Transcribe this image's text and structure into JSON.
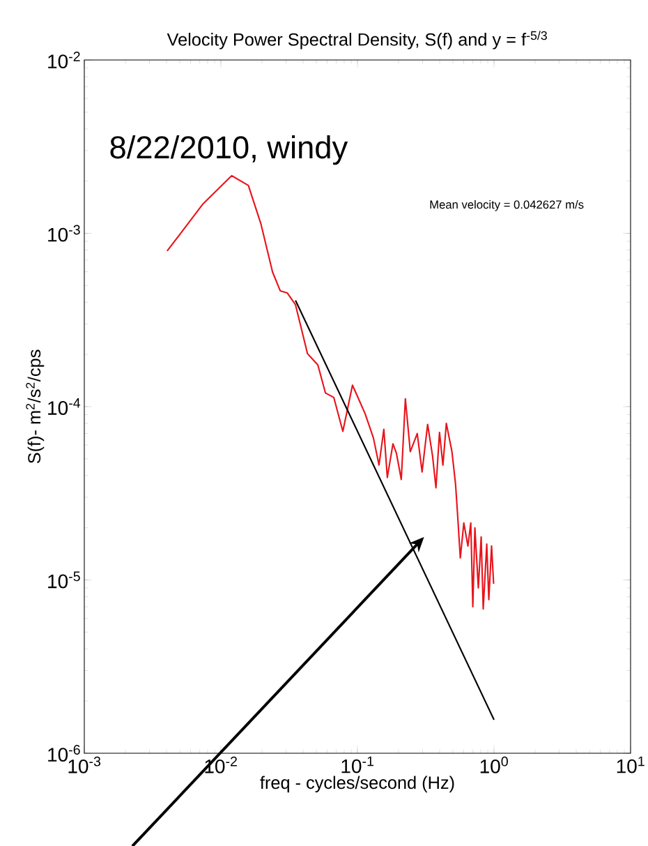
{
  "chart_data": {
    "type": "line",
    "log": "xy",
    "title": "Velocity Power Spectral Density, S(f) and y = f$^{-5/3}$",
    "xlabel": "freq - cycles/second (Hz)",
    "ylabel": "S(f)- m$^{2}$/s$^{2}$/cps",
    "xlim": [
      0.001,
      10
    ],
    "ylim": [
      1e-06,
      0.01
    ],
    "xticks": [
      {
        "value": 0.001,
        "label": "10$^{-3}$"
      },
      {
        "value": 0.01,
        "label": "10$^{-2}$"
      },
      {
        "value": 0.1,
        "label": "10$^{-1}$"
      },
      {
        "value": 1,
        "label": "10$^{0}$"
      },
      {
        "value": 10,
        "label": "10$^{1}$"
      }
    ],
    "yticks": [
      {
        "value": 1e-06,
        "label": "10$^{-6}$"
      },
      {
        "value": 1e-05,
        "label": "10$^{-5}$"
      },
      {
        "value": 0.0001,
        "label": "10$^{-4}$"
      },
      {
        "value": 0.001,
        "label": "10$^{-3}$"
      },
      {
        "value": 0.01,
        "label": "10$^{-2}$"
      }
    ],
    "series": [
      {
        "color": "#e8141b",
        "x": [
          0.00404,
          0.00741,
          0.012,
          0.0159,
          0.0196,
          0.0239,
          0.0272,
          0.0306,
          0.0352,
          0.0431,
          0.0513,
          0.0583,
          0.0671,
          0.0782,
          0.092,
          0.1138,
          0.1309,
          0.1439,
          0.1561,
          0.1655,
          0.182,
          0.1928,
          0.2094,
          0.2244,
          0.2438,
          0.2741,
          0.2974,
          0.3266,
          0.3548,
          0.3758,
          0.399,
          0.4227,
          0.4477,
          0.492,
          0.5224,
          0.5408,
          0.5665,
          0.6012,
          0.6442,
          0.6761,
          0.6998,
          0.7245,
          0.7678,
          0.8054,
          0.8337,
          0.8851,
          0.9162,
          0.9597,
          0.9935
        ],
        "values": [
          0.00079,
          0.00148,
          0.00215,
          0.00189,
          0.00114,
          0.000598,
          0.000466,
          0.000453,
          0.000387,
          0.000202,
          0.000174,
          0.00012,
          0.000113,
          7.2e-05,
          0.000133,
          9.1e-05,
          6.6e-05,
          4.6e-05,
          7.4e-05,
          3.9e-05,
          6.1e-05,
          5.4e-05,
          3.8e-05,
          0.000111,
          5.5e-05,
          7e-05,
          4.2e-05,
          7.9e-05,
          5.2e-05,
          3.4e-05,
          7.1e-05,
          4.6e-05,
          8e-05,
          5.5e-05,
          3.6e-05,
          2.4e-05,
          1.34e-05,
          2.13e-05,
          1.57e-05,
          2.13e-05,
          7e-06,
          2e-05,
          9e-06,
          1.77e-05,
          6.8e-06,
          1.61e-05,
          7.7e-06,
          1.57e-05,
          9.5e-06
        ]
      },
      {
        "color": "#000000",
        "x": [
          0.0352,
          1
        ],
        "values": [
          0.00041,
          1.56e-06
        ]
      }
    ],
    "annotations": [
      "8/22/2010, windy",
      "Mean velocity = 0.042627 m/s"
    ]
  }
}
